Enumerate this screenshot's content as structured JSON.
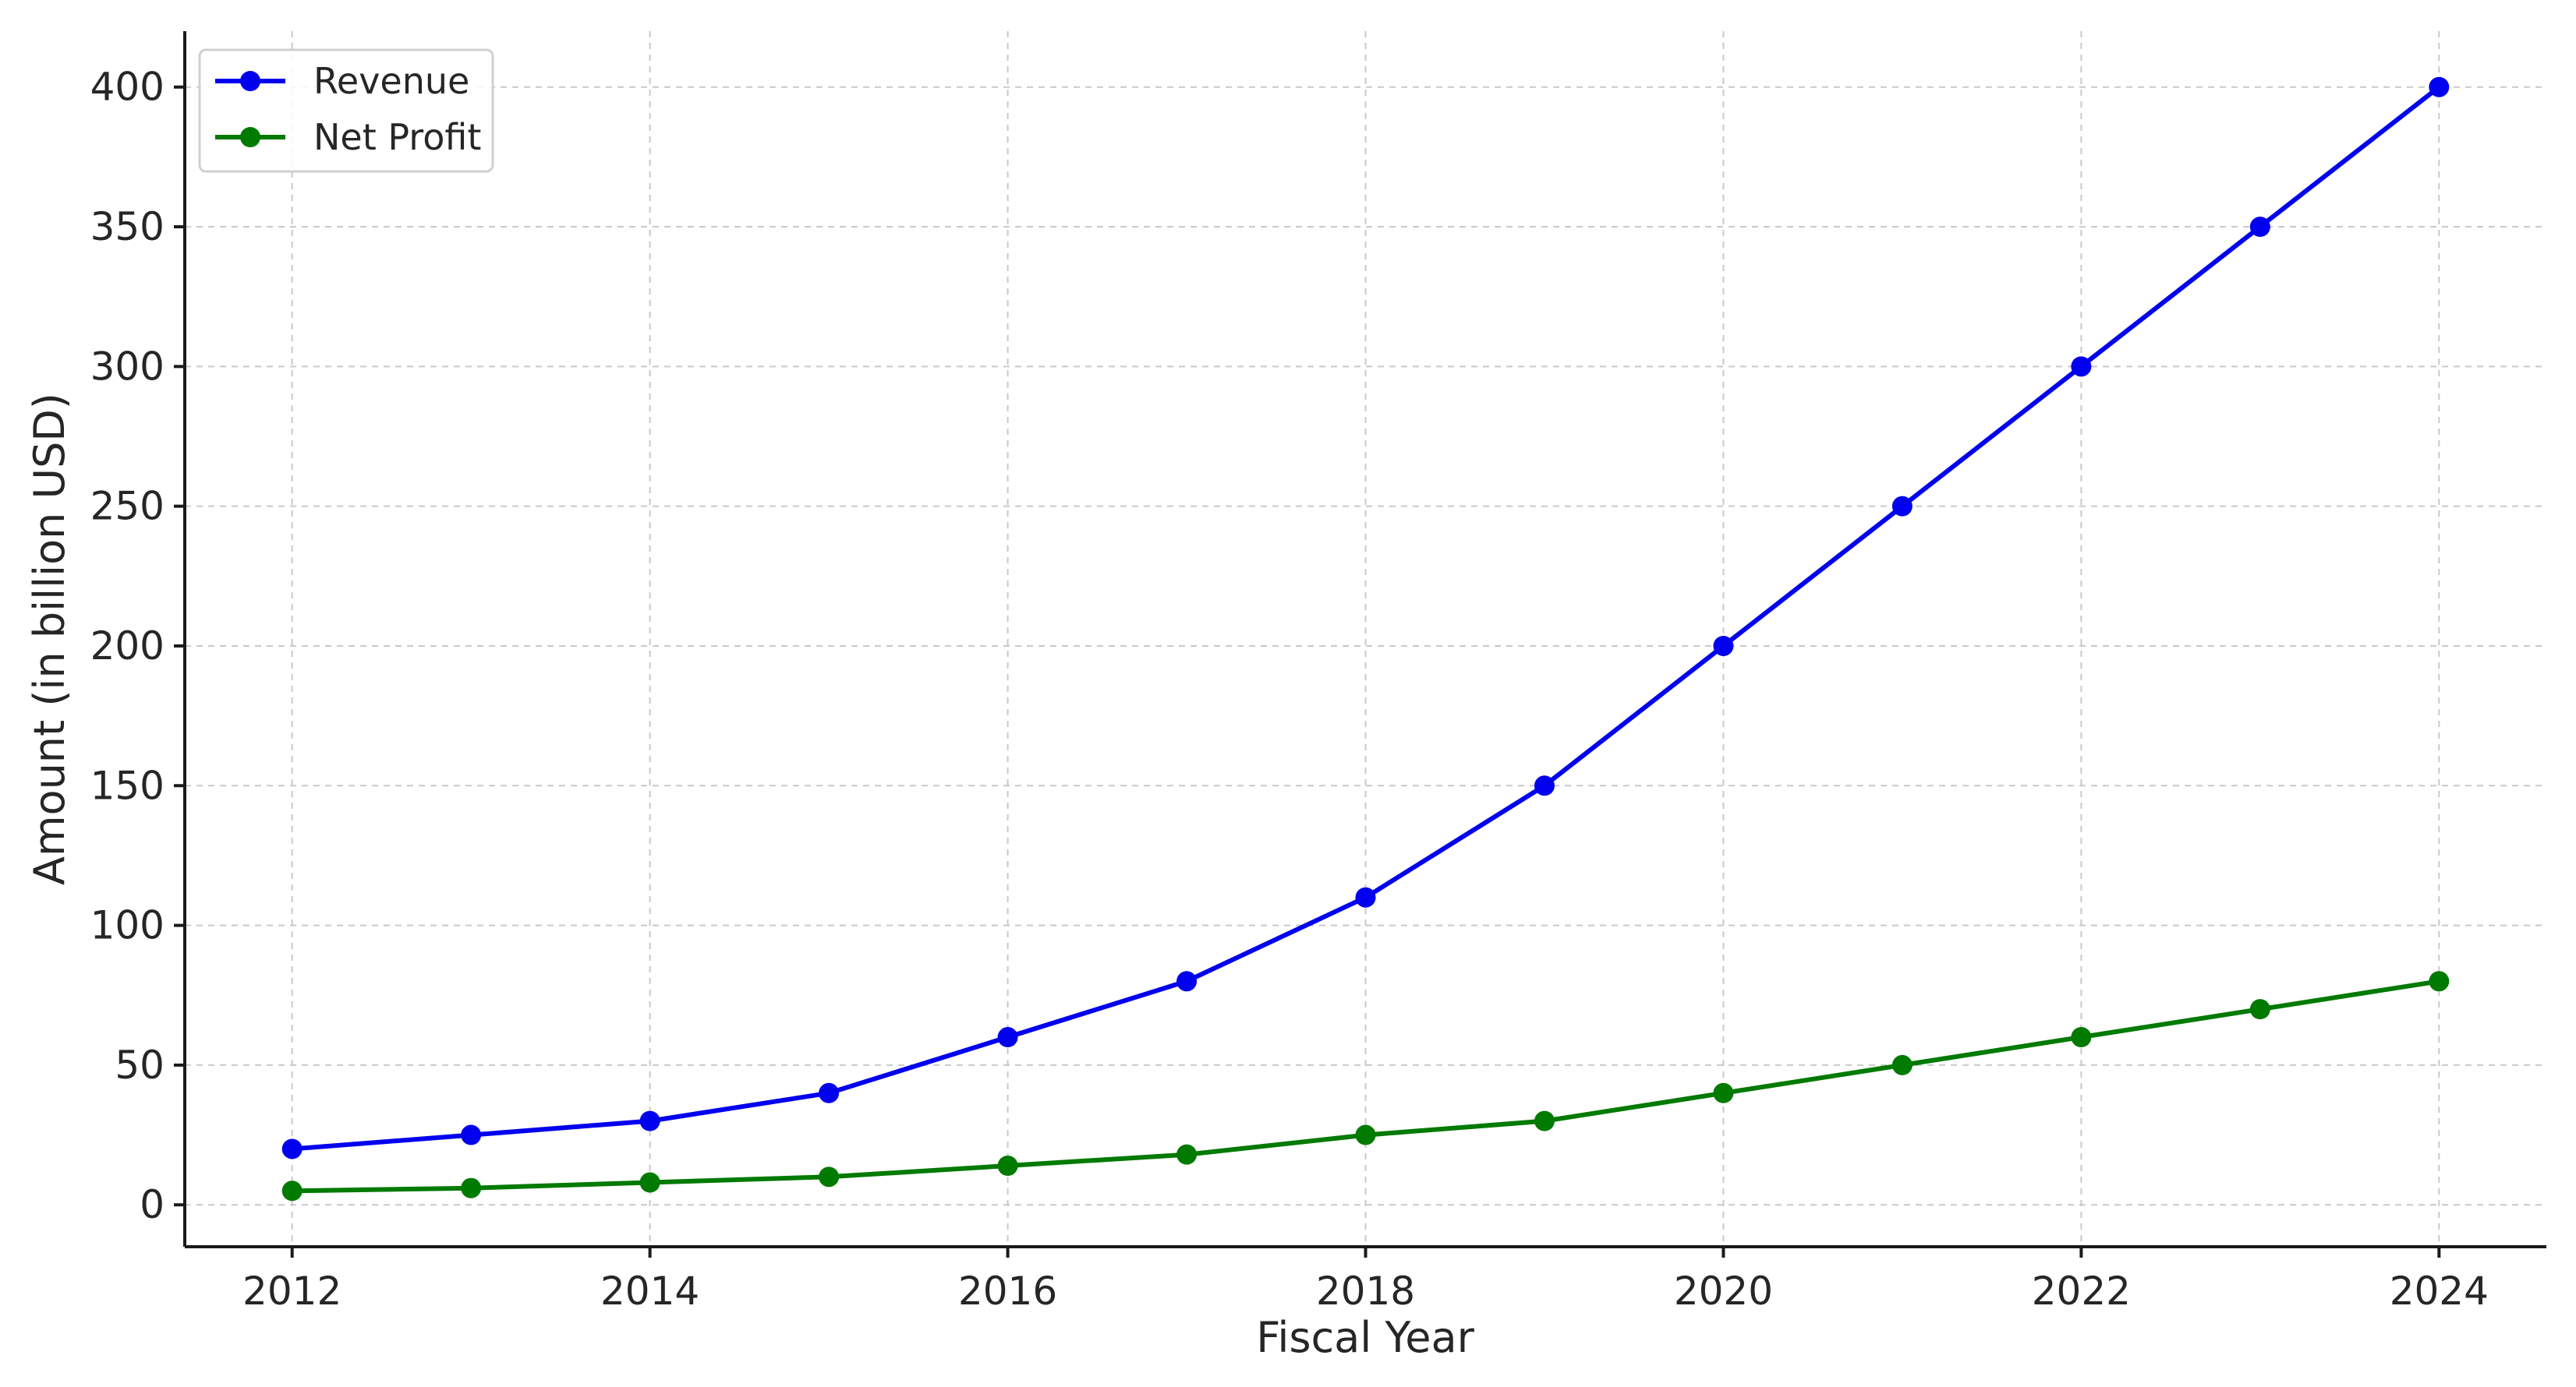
{
  "chart_data": {
    "type": "line",
    "title": "",
    "xlabel": "Fiscal Year",
    "ylabel": "Amount (in billion USD)",
    "x": [
      2012,
      2013,
      2014,
      2015,
      2016,
      2017,
      2018,
      2019,
      2020,
      2021,
      2022,
      2023,
      2024
    ],
    "xlim": [
      2011.4,
      2024.6
    ],
    "ylim": [
      -15,
      420
    ],
    "xticks": [
      "2012",
      "2014",
      "2016",
      "2018",
      "2020",
      "2022",
      "2024"
    ],
    "yticks": [
      "0",
      "50",
      "100",
      "150",
      "200",
      "250",
      "300",
      "350",
      "400"
    ],
    "grid": true,
    "legend_position": "top-left",
    "series": [
      {
        "name": "Revenue",
        "color": "#0000ee",
        "values": [
          20,
          25,
          30,
          40,
          60,
          80,
          110,
          150,
          200,
          250,
          300,
          350,
          400
        ]
      },
      {
        "name": "Net Profit",
        "color": "#007a00",
        "values": [
          5,
          6,
          8,
          10,
          14,
          18,
          25,
          30,
          40,
          50,
          60,
          70,
          80
        ]
      }
    ]
  }
}
